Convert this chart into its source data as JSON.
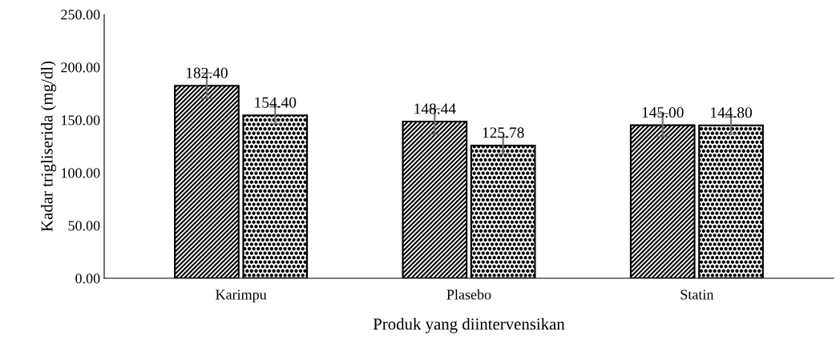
{
  "chart_data": {
    "type": "bar",
    "xlabel": "Produk yang diintervensikan",
    "ylabel": "Kadar trigliserida (mg/dl)",
    "categories": [
      "Karimpu",
      "Plasebo",
      "Statin"
    ],
    "series": [
      {
        "color": "#000000",
        "values": [
          182.4,
          148.44,
          145.0
        ],
        "value_labels": [
          "182.40",
          "148.44",
          "145.00"
        ],
        "errors": [
          12,
          12,
          11
        ]
      },
      {
        "color": "#000000",
        "values": [
          154.4,
          125.78,
          144.8
        ],
        "value_labels": [
          "154.40",
          "125.78",
          "144.80"
        ],
        "errors": [
          8,
          8,
          8
        ]
      }
    ],
    "ylim": [
      0,
      250
    ],
    "yticks": [
      {
        "value": 0,
        "label": "0.00"
      },
      {
        "value": 50,
        "label": "50.00"
      },
      {
        "value": 100,
        "label": "100.00"
      },
      {
        "value": 150,
        "label": "150.00"
      },
      {
        "value": 200,
        "label": "200.00"
      },
      {
        "value": 250,
        "label": "250.00"
      }
    ]
  }
}
